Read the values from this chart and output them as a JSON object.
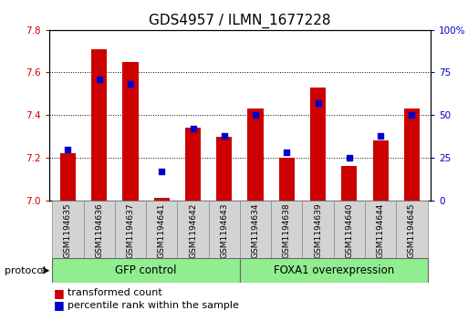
{
  "title": "GDS4957 / ILMN_1677228",
  "samples": [
    "GSM1194635",
    "GSM1194636",
    "GSM1194637",
    "GSM1194641",
    "GSM1194642",
    "GSM1194643",
    "GSM1194634",
    "GSM1194638",
    "GSM1194639",
    "GSM1194640",
    "GSM1194644",
    "GSM1194645"
  ],
  "transformed_count": [
    7.22,
    7.71,
    7.65,
    7.01,
    7.34,
    7.3,
    7.43,
    7.2,
    7.53,
    7.16,
    7.28,
    7.43
  ],
  "percentile_rank": [
    30,
    71,
    68,
    17,
    42,
    38,
    50,
    28,
    57,
    25,
    38,
    50
  ],
  "ylim_left": [
    7.0,
    7.8
  ],
  "ylim_right": [
    0,
    100
  ],
  "yticks_left": [
    7.0,
    7.2,
    7.4,
    7.6,
    7.8
  ],
  "yticks_right": [
    0,
    25,
    50,
    75,
    100
  ],
  "ytick_labels_right": [
    "0",
    "25",
    "50",
    "75",
    "100%"
  ],
  "bar_color": "#cc0000",
  "dot_color": "#0000cc",
  "group1_label": "GFP control",
  "group2_label": "FOXA1 overexpression",
  "group_color": "#90ee90",
  "label_box_color": "#d3d3d3",
  "protocol_label": "protocol",
  "legend_bar_label": "transformed count",
  "legend_dot_label": "percentile rank within the sample",
  "bar_width": 0.5,
  "title_fontsize": 11,
  "tick_fontsize": 7.5,
  "sample_fontsize": 6.5,
  "group_fontsize": 8.5,
  "legend_fontsize": 8
}
